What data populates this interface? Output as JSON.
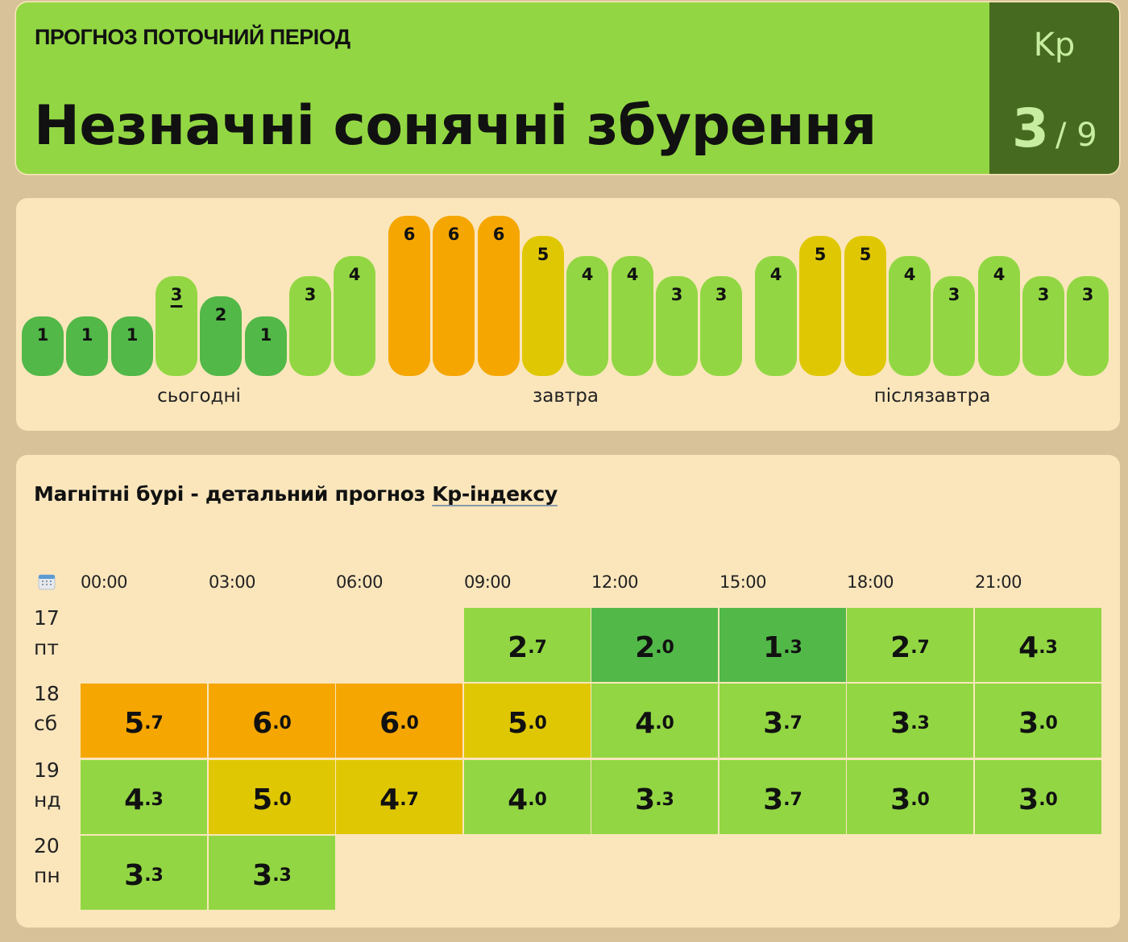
{
  "banner": {
    "kicker": "ПРОГНОЗ ПОТОЧНИЙ ПЕРІОД",
    "headline": "Незначні сонячні збурення",
    "kp_label": "Kp",
    "kp_value": "3",
    "kp_max": "/ 9",
    "colors": {
      "background": "#92d743",
      "kp_box": "#466b20",
      "kp_text": "#c6eda0"
    }
  },
  "color_scale": {
    "kp_1_2": "#52b848",
    "kp_3_4": "#92d743",
    "kp_5": "#dfc704",
    "kp_6": "#f5a600"
  },
  "bars": {
    "days": [
      {
        "label": "сьогодні",
        "values": [
          1,
          1,
          1,
          3,
          2,
          1,
          3,
          4
        ],
        "current_index": 3
      },
      {
        "label": "завтра",
        "values": [
          6,
          6,
          6,
          5,
          4,
          4,
          3,
          3
        ]
      },
      {
        "label": "післязавтра",
        "values": [
          4,
          5,
          5,
          4,
          3,
          4,
          3,
          3
        ]
      }
    ]
  },
  "detail": {
    "title_prefix": "Магнітні бурі - детальний прогноз ",
    "title_link": "Kp-індексу",
    "calendar_icon": "calendar-icon",
    "times": [
      "00:00",
      "03:00",
      "06:00",
      "09:00",
      "12:00",
      "15:00",
      "18:00",
      "21:00"
    ],
    "rows": [
      {
        "day": "17",
        "weekday": "пт",
        "values": [
          null,
          null,
          null,
          "2.7",
          "2.0",
          "1.3",
          "2.7",
          "4.3"
        ]
      },
      {
        "day": "18",
        "weekday": "сб",
        "values": [
          "5.7",
          "6.0",
          "6.0",
          "5.0",
          "4.0",
          "3.7",
          "3.3",
          "3.0"
        ]
      },
      {
        "day": "19",
        "weekday": "нд",
        "values": [
          "4.3",
          "5.0",
          "4.7",
          "4.0",
          "3.3",
          "3.7",
          "3.0",
          "3.0"
        ]
      },
      {
        "day": "20",
        "weekday": "пн",
        "values": [
          "3.3",
          "3.3",
          null,
          null,
          null,
          null,
          null,
          null
        ]
      }
    ]
  }
}
